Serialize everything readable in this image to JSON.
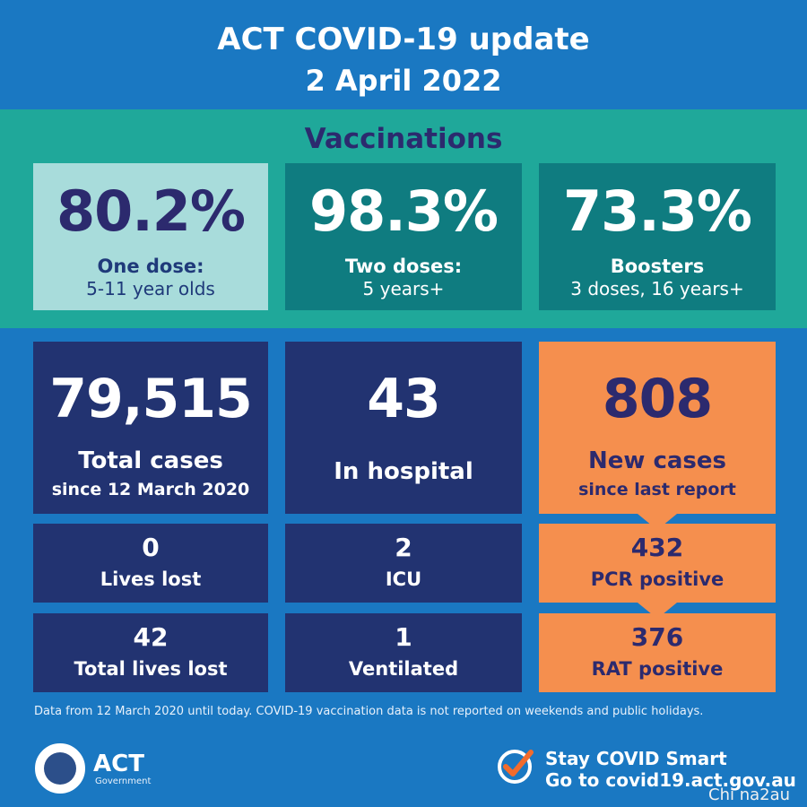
{
  "header": {
    "title": "ACT COVID-19 update",
    "date": "2 April 2022"
  },
  "vaccinations": {
    "heading": "Vaccinations",
    "cards": [
      {
        "value": "80.2%",
        "label1": "One dose:",
        "label2": "5-11 year olds"
      },
      {
        "value": "98.3%",
        "label1": "Two doses:",
        "label2": "5 years+"
      },
      {
        "value": "73.3%",
        "label1": "Boosters",
        "label2": "3 doses, 16 years+"
      }
    ]
  },
  "cases": {
    "total": {
      "value": "79,515",
      "label1": "Total cases",
      "label2": "since 12 March 2020"
    },
    "hospital": {
      "value": "43",
      "label1": "In hospital"
    },
    "new": {
      "value": "808",
      "label1": "New cases",
      "label2": "since last report"
    },
    "lives_lost": {
      "value": "0",
      "label": "Lives lost"
    },
    "icu": {
      "value": "2",
      "label": "ICU"
    },
    "pcr": {
      "value": "432",
      "label": "PCR positive"
    },
    "total_lives_lost": {
      "value": "42",
      "label": "Total lives lost"
    },
    "ventilated": {
      "value": "1",
      "label": "Ventilated"
    },
    "rat": {
      "value": "376",
      "label": "RAT positive"
    }
  },
  "footnote": "Data from 12 March 2020 until today.  COVID-19 vaccination data is not reported on weekends and public holidays.",
  "footer": {
    "logo_text": "ACT",
    "logo_sub": "Government",
    "smart_line1": "Stay COVID Smart",
    "smart_line2": "Go to covid19.act.gov.au",
    "watermark": "Chi na2au"
  },
  "colors": {
    "background": "#1a78c2",
    "teal_band": "#1fa89a",
    "light_teal": "#a8dcdb",
    "dark_teal": "#0f7c80",
    "navy": "#223371",
    "orange": "#f58f4e",
    "heading_navy": "#2c2a6e"
  }
}
